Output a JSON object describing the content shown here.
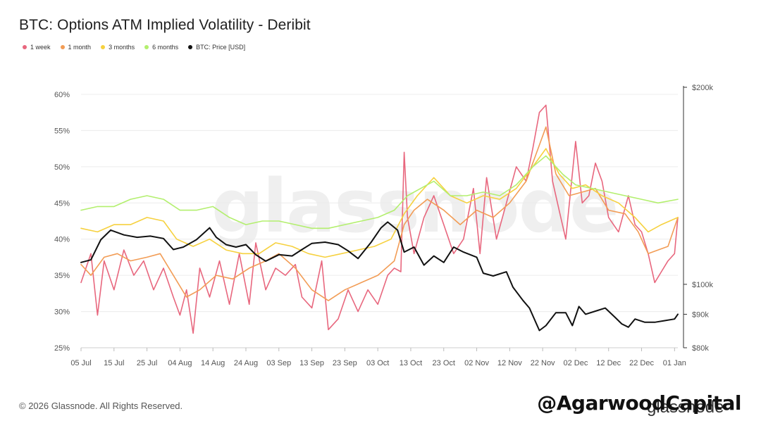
{
  "header": {
    "title": "BTC: Options ATM Implied Volatility - Deribit",
    "legend": [
      {
        "label": "1 week",
        "color": "#e8677e"
      },
      {
        "label": "1 month",
        "color": "#f29c55"
      },
      {
        "label": "3 months",
        "color": "#f6d13f"
      },
      {
        "label": "6 months",
        "color": "#b3ef6e"
      },
      {
        "label": "BTC: Price [USD]",
        "color": "#111111"
      }
    ]
  },
  "watermark": "glassnode",
  "footer": {
    "copyright": "© 2026 Glassnode. All Rights Reserved.",
    "brand": "@AgarwoodCapital",
    "logo": "glassnode"
  },
  "chart_data": {
    "type": "line",
    "title": "BTC: Options ATM Implied Volatility - Deribit",
    "x_tick_labels": [
      "05 Jul",
      "15 Jul",
      "25 Jul",
      "04 Aug",
      "14 Aug",
      "24 Aug",
      "03 Sep",
      "13 Sep",
      "23 Sep",
      "03 Oct",
      "13 Oct",
      "23 Oct",
      "02 Nov",
      "12 Nov",
      "22 Nov",
      "02 Dec",
      "12 Dec",
      "22 Dec",
      "01 Jan"
    ],
    "y_left": {
      "ticks": [
        "25%",
        "30%",
        "35%",
        "40%",
        "45%",
        "50%",
        "55%",
        "60%"
      ],
      "range": [
        25,
        60
      ],
      "unit": "%"
    },
    "y_right": {
      "ticks": [
        "$80k",
        "$90k",
        "$100k",
        "$200k"
      ],
      "scale": "log",
      "range": [
        80000,
        200000
      ]
    },
    "grid": true,
    "legend_position": "top-left",
    "x_start": "2025-07-05",
    "x_end": "2026-01-02",
    "series": [
      {
        "name": "1 week",
        "color": "#e8677e",
        "axis": "left",
        "points": [
          [
            "2025-07-05",
            34
          ],
          [
            "2025-07-08",
            38
          ],
          [
            "2025-07-10",
            29.5
          ],
          [
            "2025-07-12",
            37
          ],
          [
            "2025-07-15",
            33
          ],
          [
            "2025-07-18",
            38.5
          ],
          [
            "2025-07-21",
            35
          ],
          [
            "2025-07-24",
            37
          ],
          [
            "2025-07-27",
            33
          ],
          [
            "2025-07-30",
            36
          ],
          [
            "2025-08-02",
            32
          ],
          [
            "2025-08-04",
            29.5
          ],
          [
            "2025-08-06",
            33
          ],
          [
            "2025-08-08",
            27
          ],
          [
            "2025-08-10",
            36
          ],
          [
            "2025-08-13",
            32
          ],
          [
            "2025-08-16",
            37
          ],
          [
            "2025-08-19",
            31
          ],
          [
            "2025-08-22",
            38
          ],
          [
            "2025-08-25",
            31
          ],
          [
            "2025-08-27",
            39.5
          ],
          [
            "2025-08-30",
            33
          ],
          [
            "2025-09-02",
            36
          ],
          [
            "2025-09-05",
            35
          ],
          [
            "2025-09-08",
            36.5
          ],
          [
            "2025-09-10",
            32
          ],
          [
            "2025-09-13",
            30.5
          ],
          [
            "2025-09-16",
            37
          ],
          [
            "2025-09-18",
            27.5
          ],
          [
            "2025-09-21",
            29
          ],
          [
            "2025-09-24",
            33
          ],
          [
            "2025-09-27",
            30
          ],
          [
            "2025-09-30",
            33
          ],
          [
            "2025-10-03",
            31
          ],
          [
            "2025-10-06",
            35
          ],
          [
            "2025-10-08",
            36
          ],
          [
            "2025-10-10",
            35.5
          ],
          [
            "2025-10-11",
            52
          ],
          [
            "2025-10-12",
            43
          ],
          [
            "2025-10-14",
            38
          ],
          [
            "2025-10-17",
            43
          ],
          [
            "2025-10-20",
            46
          ],
          [
            "2025-10-23",
            42
          ],
          [
            "2025-10-26",
            38
          ],
          [
            "2025-10-29",
            40
          ],
          [
            "2025-11-01",
            47
          ],
          [
            "2025-11-03",
            38
          ],
          [
            "2025-11-05",
            48.5
          ],
          [
            "2025-11-08",
            40
          ],
          [
            "2025-11-11",
            45
          ],
          [
            "2025-11-14",
            50
          ],
          [
            "2025-11-17",
            48
          ],
          [
            "2025-11-19",
            52.5
          ],
          [
            "2025-11-21",
            57.5
          ],
          [
            "2025-11-23",
            58.5
          ],
          [
            "2025-11-25",
            48
          ],
          [
            "2025-11-27",
            44
          ],
          [
            "2025-11-29",
            40
          ],
          [
            "2025-12-02",
            53.5
          ],
          [
            "2025-12-04",
            45
          ],
          [
            "2025-12-06",
            46
          ],
          [
            "2025-12-08",
            50.5
          ],
          [
            "2025-12-10",
            48
          ],
          [
            "2025-12-12",
            43
          ],
          [
            "2025-12-15",
            41
          ],
          [
            "2025-12-18",
            46
          ],
          [
            "2025-12-20",
            42
          ],
          [
            "2025-12-22",
            41
          ],
          [
            "2025-12-24",
            38
          ],
          [
            "2025-12-26",
            34
          ],
          [
            "2025-12-28",
            35.5
          ],
          [
            "2025-12-30",
            37
          ],
          [
            "2026-01-01",
            38
          ],
          [
            "2026-01-02",
            43
          ]
        ]
      },
      {
        "name": "1 month",
        "color": "#f29c55",
        "axis": "left",
        "points": [
          [
            "2025-07-05",
            36.5
          ],
          [
            "2025-07-08",
            35
          ],
          [
            "2025-07-12",
            37.5
          ],
          [
            "2025-07-16",
            38
          ],
          [
            "2025-07-20",
            37
          ],
          [
            "2025-07-25",
            37.5
          ],
          [
            "2025-07-29",
            38
          ],
          [
            "2025-08-02",
            35
          ],
          [
            "2025-08-06",
            32
          ],
          [
            "2025-08-10",
            33
          ],
          [
            "2025-08-15",
            35
          ],
          [
            "2025-08-20",
            34.5
          ],
          [
            "2025-08-25",
            36
          ],
          [
            "2025-08-30",
            37
          ],
          [
            "2025-09-03",
            38
          ],
          [
            "2025-09-08",
            36
          ],
          [
            "2025-09-13",
            33
          ],
          [
            "2025-09-18",
            31.5
          ],
          [
            "2025-09-23",
            33
          ],
          [
            "2025-09-28",
            34
          ],
          [
            "2025-10-03",
            35
          ],
          [
            "2025-10-08",
            37
          ],
          [
            "2025-10-11",
            42
          ],
          [
            "2025-10-14",
            44
          ],
          [
            "2025-10-18",
            45.5
          ],
          [
            "2025-10-23",
            44
          ],
          [
            "2025-10-28",
            42
          ],
          [
            "2025-11-02",
            44
          ],
          [
            "2025-11-07",
            43
          ],
          [
            "2025-11-12",
            45
          ],
          [
            "2025-11-17",
            48
          ],
          [
            "2025-11-21",
            53
          ],
          [
            "2025-11-23",
            55.5
          ],
          [
            "2025-11-26",
            49
          ],
          [
            "2025-11-30",
            46
          ],
          [
            "2025-12-04",
            46.5
          ],
          [
            "2025-12-08",
            47
          ],
          [
            "2025-12-12",
            44
          ],
          [
            "2025-12-17",
            43.5
          ],
          [
            "2025-12-21",
            41
          ],
          [
            "2025-12-24",
            38
          ],
          [
            "2025-12-27",
            38.5
          ],
          [
            "2025-12-30",
            39
          ],
          [
            "2026-01-02",
            43
          ]
        ]
      },
      {
        "name": "3 months",
        "color": "#f6d13f",
        "axis": "left",
        "points": [
          [
            "2025-07-05",
            41.5
          ],
          [
            "2025-07-10",
            41
          ],
          [
            "2025-07-15",
            42
          ],
          [
            "2025-07-20",
            42
          ],
          [
            "2025-07-25",
            43
          ],
          [
            "2025-07-30",
            42.5
          ],
          [
            "2025-08-03",
            40
          ],
          [
            "2025-08-08",
            39
          ],
          [
            "2025-08-13",
            40
          ],
          [
            "2025-08-18",
            38.5
          ],
          [
            "2025-08-23",
            38
          ],
          [
            "2025-08-28",
            38
          ],
          [
            "2025-09-02",
            39.5
          ],
          [
            "2025-09-07",
            39
          ],
          [
            "2025-09-12",
            38
          ],
          [
            "2025-09-17",
            37.5
          ],
          [
            "2025-09-22",
            38
          ],
          [
            "2025-09-27",
            38.5
          ],
          [
            "2025-10-02",
            39
          ],
          [
            "2025-10-07",
            40
          ],
          [
            "2025-10-11",
            43.5
          ],
          [
            "2025-10-15",
            46
          ],
          [
            "2025-10-20",
            48.5
          ],
          [
            "2025-10-25",
            46
          ],
          [
            "2025-10-30",
            45
          ],
          [
            "2025-11-04",
            46
          ],
          [
            "2025-11-09",
            45.5
          ],
          [
            "2025-11-14",
            47
          ],
          [
            "2025-11-19",
            50
          ],
          [
            "2025-11-23",
            52.5
          ],
          [
            "2025-11-27",
            49
          ],
          [
            "2025-12-01",
            47
          ],
          [
            "2025-12-05",
            47.5
          ],
          [
            "2025-12-10",
            46
          ],
          [
            "2025-12-15",
            45
          ],
          [
            "2025-12-20",
            43
          ],
          [
            "2025-12-24",
            41
          ],
          [
            "2025-12-28",
            42
          ],
          [
            "2026-01-02",
            43
          ]
        ]
      },
      {
        "name": "6 months",
        "color": "#b3ef6e",
        "axis": "left",
        "points": [
          [
            "2025-07-05",
            44
          ],
          [
            "2025-07-10",
            44.5
          ],
          [
            "2025-07-15",
            44.5
          ],
          [
            "2025-07-20",
            45.5
          ],
          [
            "2025-07-25",
            46
          ],
          [
            "2025-07-30",
            45.5
          ],
          [
            "2025-08-04",
            44
          ],
          [
            "2025-08-09",
            44
          ],
          [
            "2025-08-14",
            44.5
          ],
          [
            "2025-08-19",
            43
          ],
          [
            "2025-08-24",
            42
          ],
          [
            "2025-08-29",
            42.5
          ],
          [
            "2025-09-03",
            42.5
          ],
          [
            "2025-09-08",
            42
          ],
          [
            "2025-09-13",
            41.5
          ],
          [
            "2025-09-18",
            41.5
          ],
          [
            "2025-09-23",
            42
          ],
          [
            "2025-09-28",
            42.5
          ],
          [
            "2025-10-03",
            43
          ],
          [
            "2025-10-08",
            44
          ],
          [
            "2025-10-12",
            46
          ],
          [
            "2025-10-16",
            47
          ],
          [
            "2025-10-20",
            48
          ],
          [
            "2025-10-25",
            46
          ],
          [
            "2025-10-30",
            46
          ],
          [
            "2025-11-04",
            46.5
          ],
          [
            "2025-11-09",
            46
          ],
          [
            "2025-11-14",
            47.5
          ],
          [
            "2025-11-19",
            50
          ],
          [
            "2025-11-23",
            51.5
          ],
          [
            "2025-11-28",
            49
          ],
          [
            "2025-12-02",
            47.5
          ],
          [
            "2025-12-07",
            47
          ],
          [
            "2025-12-12",
            46.5
          ],
          [
            "2025-12-17",
            46
          ],
          [
            "2025-12-22",
            45.5
          ],
          [
            "2025-12-27",
            45
          ],
          [
            "2026-01-02",
            45.5
          ]
        ]
      },
      {
        "name": "BTC: Price [USD]",
        "color": "#111111",
        "axis": "right",
        "points": [
          [
            "2025-07-05",
            108000
          ],
          [
            "2025-07-08",
            109000
          ],
          [
            "2025-07-11",
            117000
          ],
          [
            "2025-07-14",
            121000
          ],
          [
            "2025-07-18",
            119000
          ],
          [
            "2025-07-22",
            118000
          ],
          [
            "2025-07-26",
            118500
          ],
          [
            "2025-07-30",
            117500
          ],
          [
            "2025-08-02",
            113000
          ],
          [
            "2025-08-05",
            114000
          ],
          [
            "2025-08-09",
            117000
          ],
          [
            "2025-08-13",
            122000
          ],
          [
            "2025-08-15",
            118000
          ],
          [
            "2025-08-18",
            115000
          ],
          [
            "2025-08-21",
            114000
          ],
          [
            "2025-08-24",
            115000
          ],
          [
            "2025-08-27",
            111000
          ],
          [
            "2025-08-30",
            108500
          ],
          [
            "2025-09-03",
            111000
          ],
          [
            "2025-09-07",
            110500
          ],
          [
            "2025-09-10",
            113000
          ],
          [
            "2025-09-13",
            115500
          ],
          [
            "2025-09-17",
            116000
          ],
          [
            "2025-09-21",
            115000
          ],
          [
            "2025-09-24",
            112500
          ],
          [
            "2025-09-27",
            109500
          ],
          [
            "2025-10-01",
            116000
          ],
          [
            "2025-10-04",
            122000
          ],
          [
            "2025-10-06",
            124500
          ],
          [
            "2025-10-09",
            121000
          ],
          [
            "2025-10-11",
            112000
          ],
          [
            "2025-10-14",
            114000
          ],
          [
            "2025-10-17",
            107000
          ],
          [
            "2025-10-20",
            110500
          ],
          [
            "2025-10-23",
            108000
          ],
          [
            "2025-10-26",
            114000
          ],
          [
            "2025-10-29",
            112000
          ],
          [
            "2025-11-02",
            110000
          ],
          [
            "2025-11-04",
            104000
          ],
          [
            "2025-11-07",
            103000
          ],
          [
            "2025-11-11",
            104500
          ],
          [
            "2025-11-13",
            99000
          ],
          [
            "2025-11-16",
            94500
          ],
          [
            "2025-11-18",
            92000
          ],
          [
            "2025-11-21",
            85000
          ],
          [
            "2025-11-23",
            86500
          ],
          [
            "2025-11-26",
            90500
          ],
          [
            "2025-11-29",
            90500
          ],
          [
            "2025-12-01",
            86500
          ],
          [
            "2025-12-03",
            92500
          ],
          [
            "2025-12-05",
            90000
          ],
          [
            "2025-12-08",
            91000
          ],
          [
            "2025-12-11",
            92000
          ],
          [
            "2025-12-14",
            89000
          ],
          [
            "2025-12-16",
            87000
          ],
          [
            "2025-12-18",
            86000
          ],
          [
            "2025-12-20",
            88500
          ],
          [
            "2025-12-23",
            87500
          ],
          [
            "2025-12-26",
            87500
          ],
          [
            "2025-12-29",
            88000
          ],
          [
            "2026-01-01",
            88500
          ],
          [
            "2026-01-02",
            90000
          ]
        ]
      }
    ]
  }
}
